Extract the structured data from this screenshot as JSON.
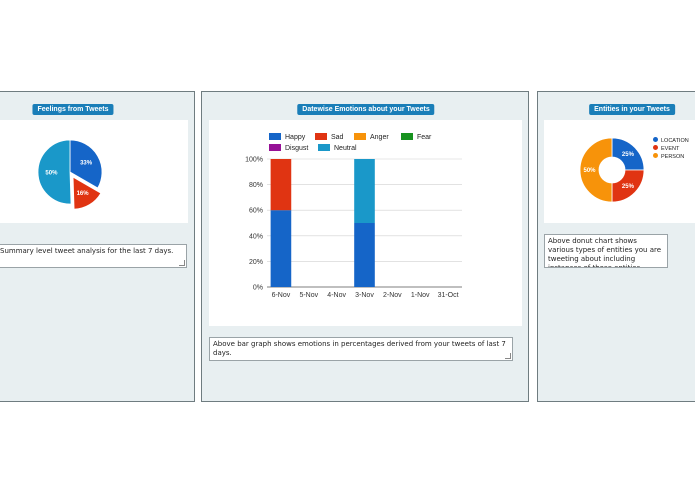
{
  "panels": {
    "feelings": {
      "title": "Feelings from Tweets",
      "note": "Summary level tweet analysis for the last 7 days."
    },
    "emotions": {
      "title": "Datewise Emotions about your Tweets",
      "note": "Above bar graph shows emotions in percentages derived from your tweets of last 7 days."
    },
    "entities": {
      "title": "Entities in your Tweets",
      "note": "Above donut chart shows various types of entities you are tweeting about including instances of those entities."
    }
  },
  "chart_data": [
    {
      "type": "pie",
      "labels": [
        "",
        "",
        ""
      ],
      "values": [
        33,
        16,
        50
      ],
      "value_labels": [
        "33%",
        "16%",
        "50%"
      ],
      "colors": [
        "#1565c8",
        "#e03412",
        "#1a98c9"
      ],
      "exploded": 1
    },
    {
      "type": "bar",
      "stacked": true,
      "categories": [
        "6-Nov",
        "5-Nov",
        "4-Nov",
        "3-Nov",
        "2-Nov",
        "1-Nov",
        "31-Oct"
      ],
      "series": [
        {
          "name": "Happy",
          "color": "#1565c8",
          "values": [
            60,
            0,
            0,
            50,
            0,
            0,
            0
          ]
        },
        {
          "name": "Sad",
          "color": "#e03412",
          "values": [
            40,
            0,
            0,
            0,
            0,
            0,
            0
          ]
        },
        {
          "name": "Anger",
          "color": "#f7930a",
          "values": [
            0,
            0,
            0,
            0,
            0,
            0,
            0
          ]
        },
        {
          "name": "Fear",
          "color": "#17921f",
          "values": [
            0,
            0,
            0,
            0,
            0,
            0,
            0
          ]
        },
        {
          "name": "Disgust",
          "color": "#961196",
          "values": [
            0,
            0,
            0,
            0,
            0,
            0,
            0
          ]
        },
        {
          "name": "Neutral",
          "color": "#1a98c9",
          "values": [
            0,
            0,
            0,
            50,
            0,
            0,
            0
          ]
        }
      ],
      "ylim": [
        0,
        100
      ],
      "yticks": [
        "0%",
        "20%",
        "40%",
        "60%",
        "80%",
        "100%"
      ],
      "grid": true,
      "legend": "top"
    },
    {
      "type": "pie",
      "donut": true,
      "labels": [
        "LOCATION",
        "EVENT",
        "PERSON"
      ],
      "values": [
        25,
        25,
        50
      ],
      "value_labels": [
        "25%",
        "25%",
        "50%"
      ],
      "colors": [
        "#1565c8",
        "#e03412",
        "#f7930a"
      ],
      "legend": "right"
    }
  ]
}
